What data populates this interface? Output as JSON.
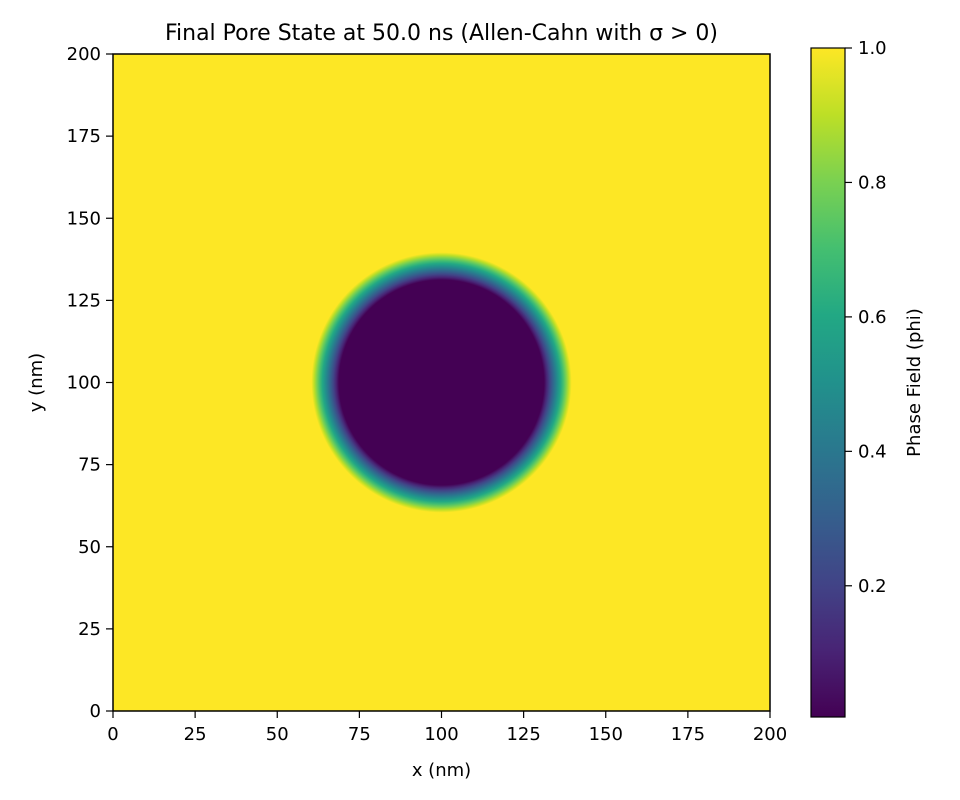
{
  "chart_data": {
    "type": "heatmap",
    "title": "Final Pore State at 50.0 ns (Allen-Cahn with σ > 0)",
    "xlabel": "x (nm)",
    "ylabel": "y (nm)",
    "xlim": [
      0,
      200
    ],
    "ylim": [
      0,
      200
    ],
    "x_ticks": [
      "0",
      "25",
      "50",
      "75",
      "100",
      "125",
      "150",
      "175",
      "200"
    ],
    "y_ticks": [
      "0",
      "25",
      "50",
      "75",
      "100",
      "125",
      "150",
      "175",
      "200"
    ],
    "colormap": "viridis",
    "colorbar": {
      "label": "Phase Field (phi)",
      "range": [
        0.0,
        1.0
      ],
      "ticks": [
        "0.2",
        "0.4",
        "0.6",
        "0.8",
        "1.0"
      ]
    },
    "field": {
      "description_of_values": "phi ≈ 1.0 outside a circular pore, ≈ 0.0 inside",
      "pore_center": [
        100,
        100
      ],
      "pore_radius_nm": 36,
      "interface_width_nm": 3,
      "outside_value": 1.0,
      "inside_value": 0.0
    },
    "grid": false
  },
  "colors": {
    "background": "#ffffff",
    "axis": "#000000",
    "viridis_low": "#440154",
    "viridis_high": "#fde725"
  }
}
